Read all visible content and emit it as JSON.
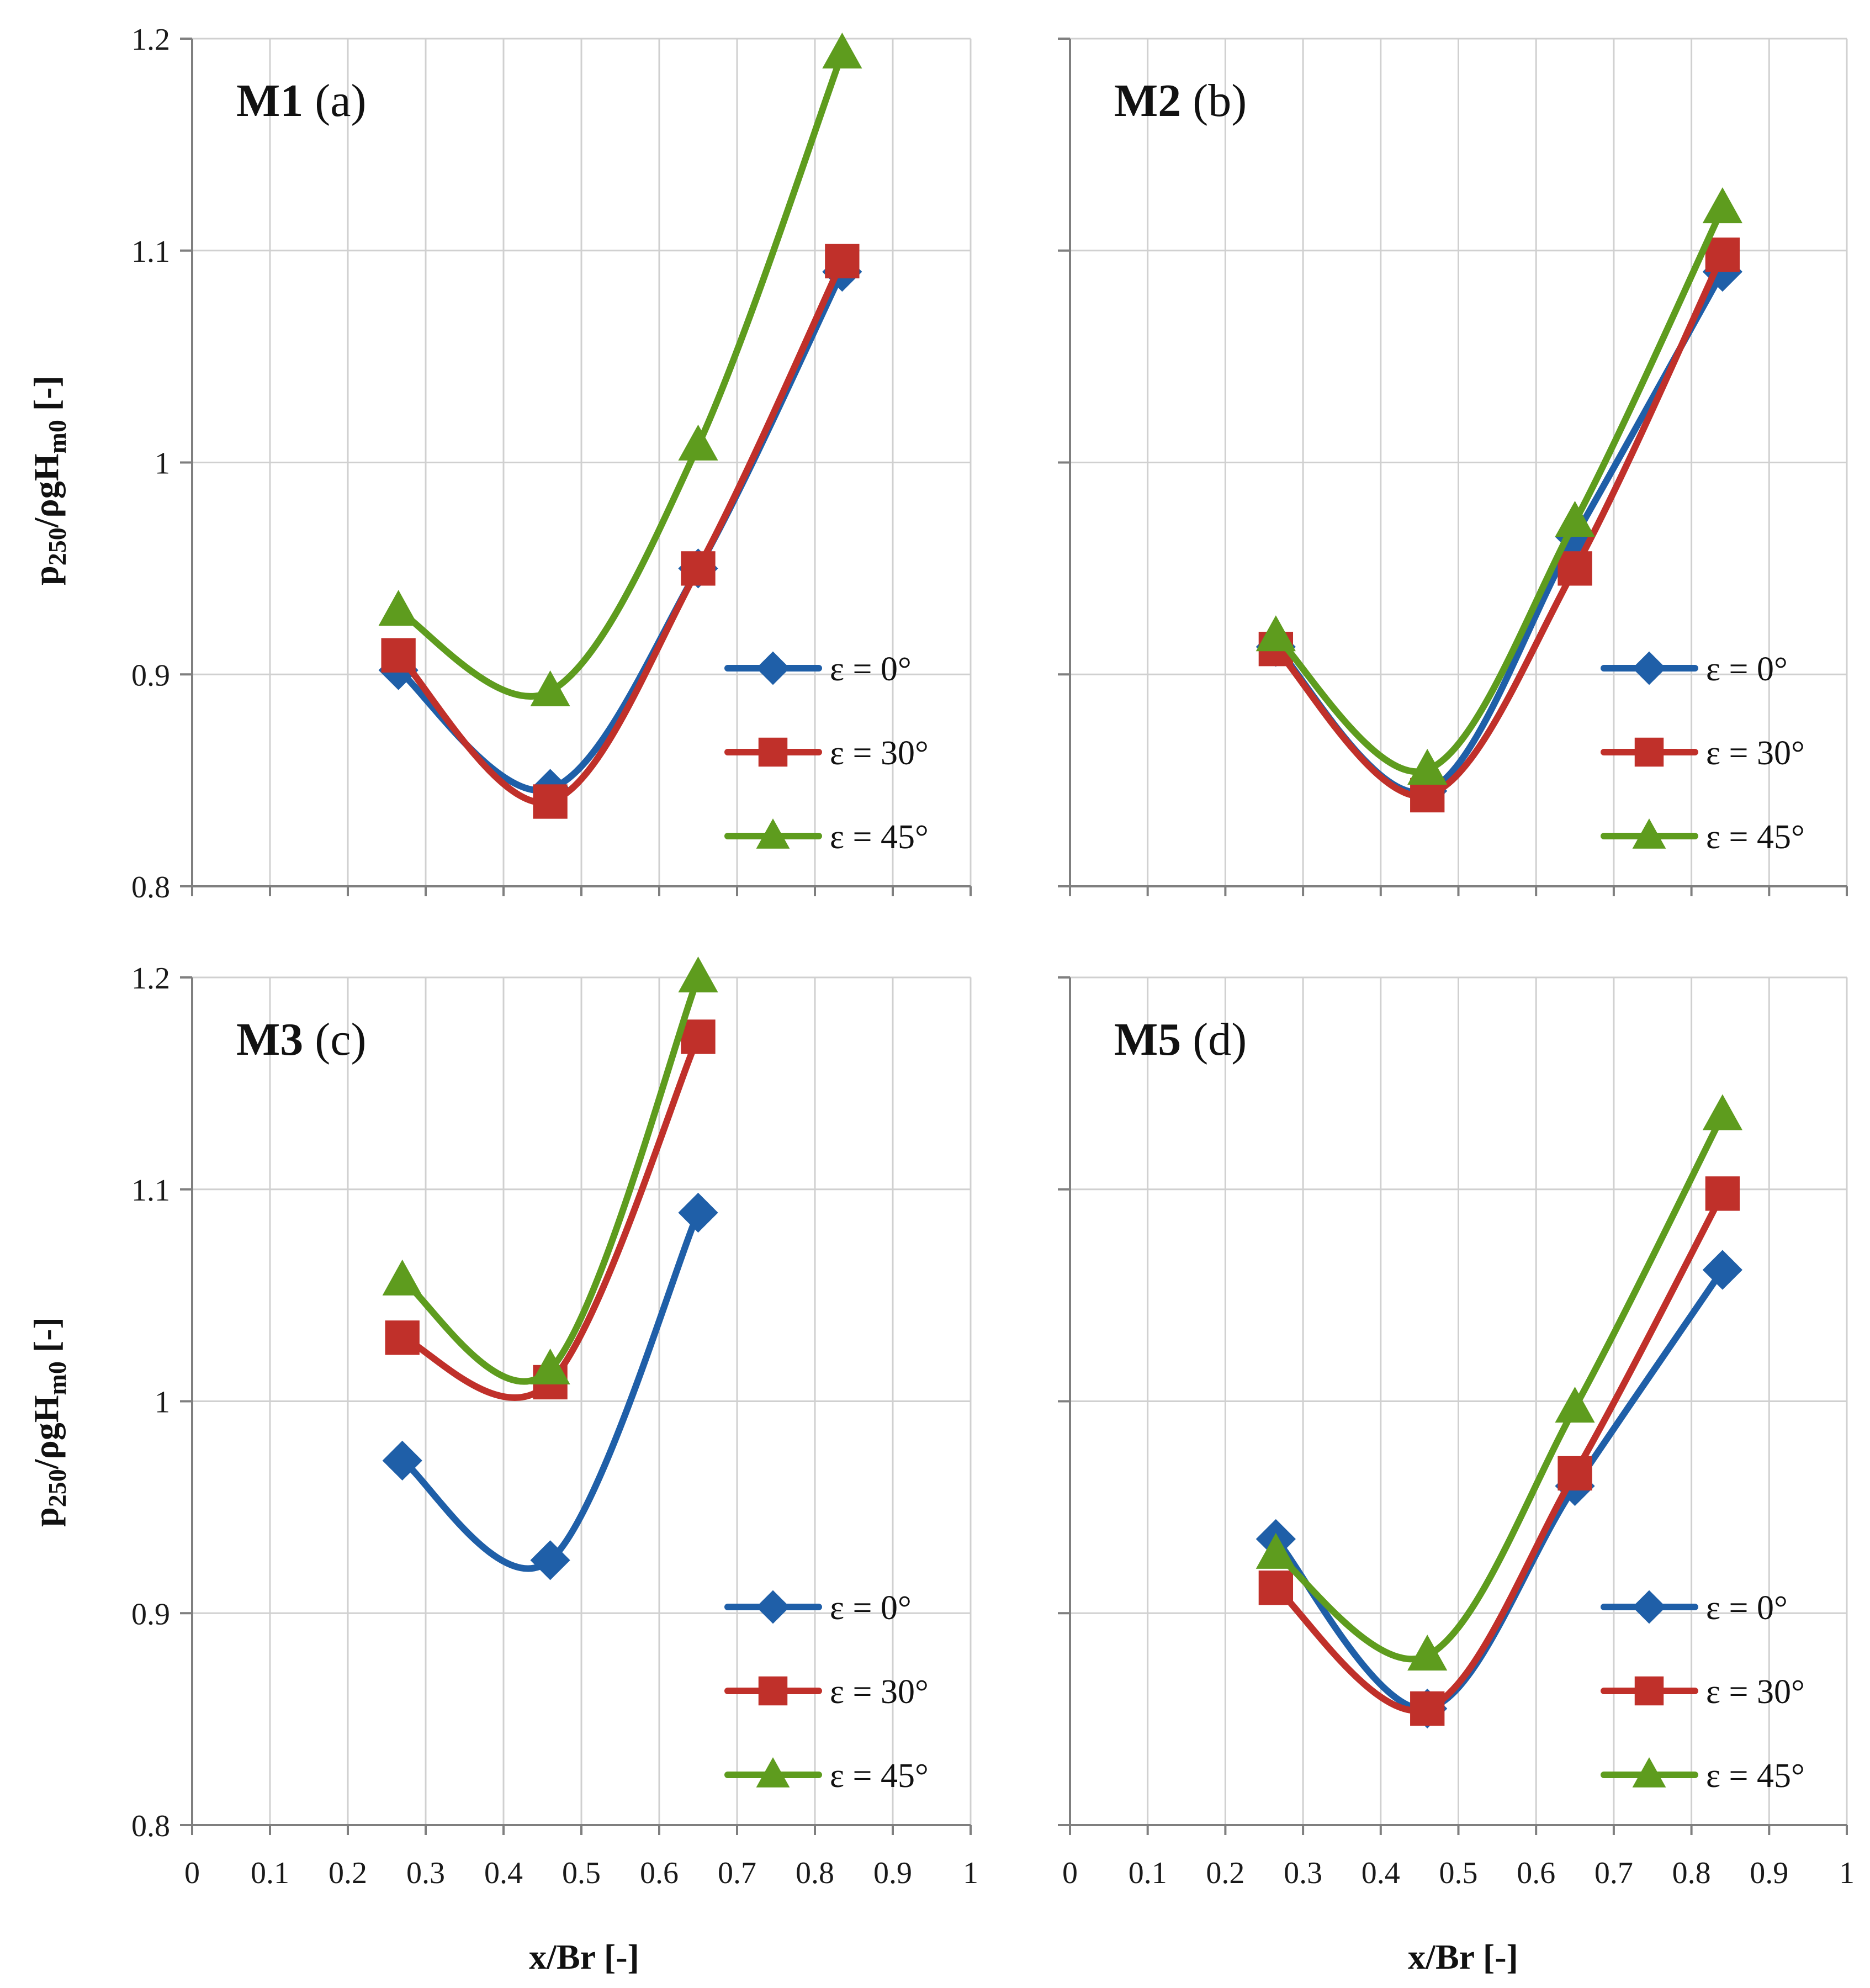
{
  "figure": {
    "ylabel_main": "p",
    "ylabel_sub1": "250",
    "ylabel_mid": "/ρgH",
    "ylabel_sub2": "m0",
    "ylabel_tail": " [-]",
    "xlabel": "x/Br [-]"
  },
  "colors": {
    "eps0": "#1f5fa8",
    "eps30": "#c0302a",
    "eps45": "#5e9c1e",
    "grid": "#d0d0d0",
    "axis": "#7f7f7f"
  },
  "chart_data": [
    {
      "type": "line",
      "model": "M1",
      "letter": "(a)",
      "x": [
        0.265,
        0.46,
        0.65,
        0.835
      ],
      "series": [
        {
          "name": "ε = 0°",
          "marker": "diamond",
          "values": [
            0.902,
            0.846,
            0.95,
            1.09
          ]
        },
        {
          "name": "ε = 30°",
          "marker": "square",
          "values": [
            0.909,
            0.84,
            0.95,
            1.095
          ]
        },
        {
          "name": "ε = 45°",
          "marker": "triangle",
          "values": [
            0.93,
            0.892,
            1.008,
            1.193
          ]
        }
      ],
      "xlim": [
        0,
        1
      ],
      "ylim": [
        0.8,
        1.2
      ],
      "xticks": [
        "0",
        "0.1",
        "0.2",
        "0.3",
        "0.4",
        "0.5",
        "0.6",
        "0.7",
        "0.8",
        "0.9",
        "1"
      ],
      "yticks": [
        "0.8",
        "0.9",
        "1",
        "1.1",
        "1.2"
      ],
      "grid": true,
      "legend": "bottom-right"
    },
    {
      "type": "line",
      "model": "M2",
      "letter": "(b)",
      "x": [
        0.265,
        0.46,
        0.65,
        0.84
      ],
      "series": [
        {
          "name": "ε = 0°",
          "marker": "diamond",
          "values": [
            0.913,
            0.845,
            0.965,
            1.09
          ]
        },
        {
          "name": "ε = 30°",
          "marker": "square",
          "values": [
            0.912,
            0.843,
            0.95,
            1.098
          ]
        },
        {
          "name": "ε = 45°",
          "marker": "triangle",
          "values": [
            0.918,
            0.855,
            0.972,
            1.12
          ]
        }
      ],
      "xlim": [
        0,
        1
      ],
      "ylim": [
        0.8,
        1.2
      ],
      "xticks": [
        "0",
        "0.1",
        "0.2",
        "0.3",
        "0.4",
        "0.5",
        "0.6",
        "0.7",
        "0.8",
        "0.9",
        "1"
      ],
      "yticks": [
        "0.8",
        "0.9",
        "1",
        "1.1",
        "1.2"
      ],
      "grid": true,
      "legend": "bottom-right"
    },
    {
      "type": "line",
      "model": "M3",
      "letter": "(c)",
      "x": [
        0.27,
        0.46,
        0.65
      ],
      "series": [
        {
          "name": "ε = 0°",
          "marker": "diamond",
          "values": [
            0.972,
            0.925,
            1.089
          ]
        },
        {
          "name": "ε = 30°",
          "marker": "square",
          "values": [
            1.03,
            1.009,
            1.172
          ]
        },
        {
          "name": "ε = 45°",
          "marker": "triangle",
          "values": [
            1.057,
            1.015,
            1.2
          ]
        }
      ],
      "xlim": [
        0,
        1
      ],
      "ylim": [
        0.8,
        1.2
      ],
      "xticks": [
        "0",
        "0.1",
        "0.2",
        "0.3",
        "0.4",
        "0.5",
        "0.6",
        "0.7",
        "0.8",
        "0.9",
        "1"
      ],
      "yticks": [
        "0.8",
        "0.9",
        "1",
        "1.1",
        "1.2"
      ],
      "grid": true,
      "legend": "bottom-right"
    },
    {
      "type": "line",
      "model": "M5",
      "letter": "(d)",
      "x": [
        0.265,
        0.46,
        0.65,
        0.84
      ],
      "series": [
        {
          "name": "ε = 0°",
          "marker": "diamond",
          "values": [
            0.935,
            0.855,
            0.96,
            1.062
          ]
        },
        {
          "name": "ε = 30°",
          "marker": "square",
          "values": [
            0.912,
            0.855,
            0.966,
            1.098
          ]
        },
        {
          "name": "ε = 45°",
          "marker": "triangle",
          "values": [
            0.928,
            0.88,
            0.997,
            1.135
          ]
        }
      ],
      "xlim": [
        0,
        1
      ],
      "ylim": [
        0.8,
        1.2
      ],
      "xticks": [
        "0",
        "0.1",
        "0.2",
        "0.3",
        "0.4",
        "0.5",
        "0.6",
        "0.7",
        "0.8",
        "0.9",
        "1"
      ],
      "yticks": [
        "0.8",
        "0.9",
        "1",
        "1.1",
        "1.2"
      ],
      "grid": true,
      "legend": "bottom-right"
    }
  ]
}
